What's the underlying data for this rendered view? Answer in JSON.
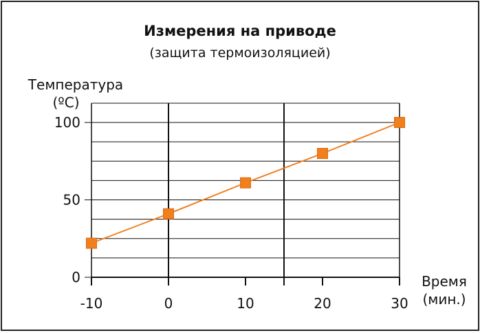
{
  "chart_data": {
    "type": "line",
    "title": "Измерения на приводе",
    "subtitle": "(защита термоизоляцией)",
    "ylabel_line1": "Температура",
    "ylabel_line2": "(ºC)",
    "xlabel_line1": "Время",
    "xlabel_line2": "(мин.)",
    "xlim": [
      -10,
      30
    ],
    "ylim": [
      0,
      100
    ],
    "x_ticks": [
      "-10",
      "0",
      "10",
      "20",
      "30"
    ],
    "y_ticks": [
      "0",
      "50",
      "100"
    ],
    "grid": true,
    "series": [
      {
        "color": "#f07f1e",
        "points": [
          {
            "x": -10,
            "y": 22
          },
          {
            "x": 0,
            "y": 41
          },
          {
            "x": 10,
            "y": 61
          },
          {
            "x": 20,
            "y": 80
          },
          {
            "x": 30,
            "y": 100
          }
        ]
      }
    ]
  },
  "colors": {
    "frame": "#222222",
    "grid": "#111111",
    "series": "#f07f1e"
  }
}
